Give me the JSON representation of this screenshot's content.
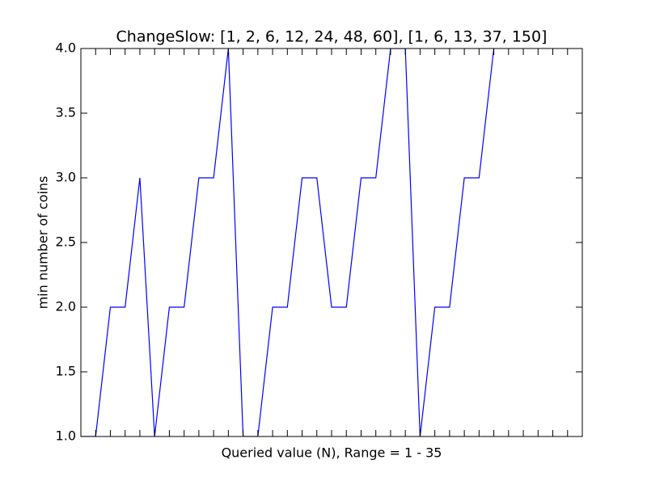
{
  "chart_data": {
    "type": "line",
    "title": "ChangeSlow: [1, 2, 6, 12, 24, 48, 60], [1, 6, 13, 37, 150]",
    "x_label": "Queried value (N), Range = 1 - 35",
    "y_label": "min number of coins",
    "x": [
      1,
      2,
      3,
      4,
      5,
      6,
      7,
      8,
      9,
      10,
      11,
      12,
      13,
      14,
      15,
      16,
      17,
      18,
      19,
      20,
      21,
      22,
      23,
      24,
      25,
      26,
      27,
      28,
      29
    ],
    "series": [
      {
        "color": "#0000ff",
        "values": [
          1,
          1,
          2,
          2,
          3,
          1,
          2,
          2,
          3,
          3,
          4,
          1,
          1,
          2,
          2,
          3,
          3,
          2,
          2,
          3,
          3,
          4,
          4,
          1,
          2,
          2,
          3,
          3,
          4
        ]
      }
    ],
    "xlim": [
      1,
      35
    ],
    "xticks": [
      1,
      2,
      3,
      4,
      5,
      6,
      7,
      8,
      9,
      10,
      11,
      12,
      13,
      14,
      15,
      16,
      17,
      18,
      19,
      20,
      21,
      22,
      23,
      24,
      25,
      26,
      27,
      28,
      29,
      30,
      31,
      32,
      33,
      34,
      35
    ],
    "ylim": [
      1.0,
      4.0
    ],
    "yticks": [
      {
        "value": 1.0,
        "label": "1.0"
      },
      {
        "value": 1.5,
        "label": "1.5"
      },
      {
        "value": 2.0,
        "label": "2.0"
      },
      {
        "value": 2.5,
        "label": "2.5"
      },
      {
        "value": 3.0,
        "label": "3.0"
      },
      {
        "value": 3.5,
        "label": "3.5"
      },
      {
        "value": 4.0,
        "label": "4.0"
      }
    ]
  }
}
